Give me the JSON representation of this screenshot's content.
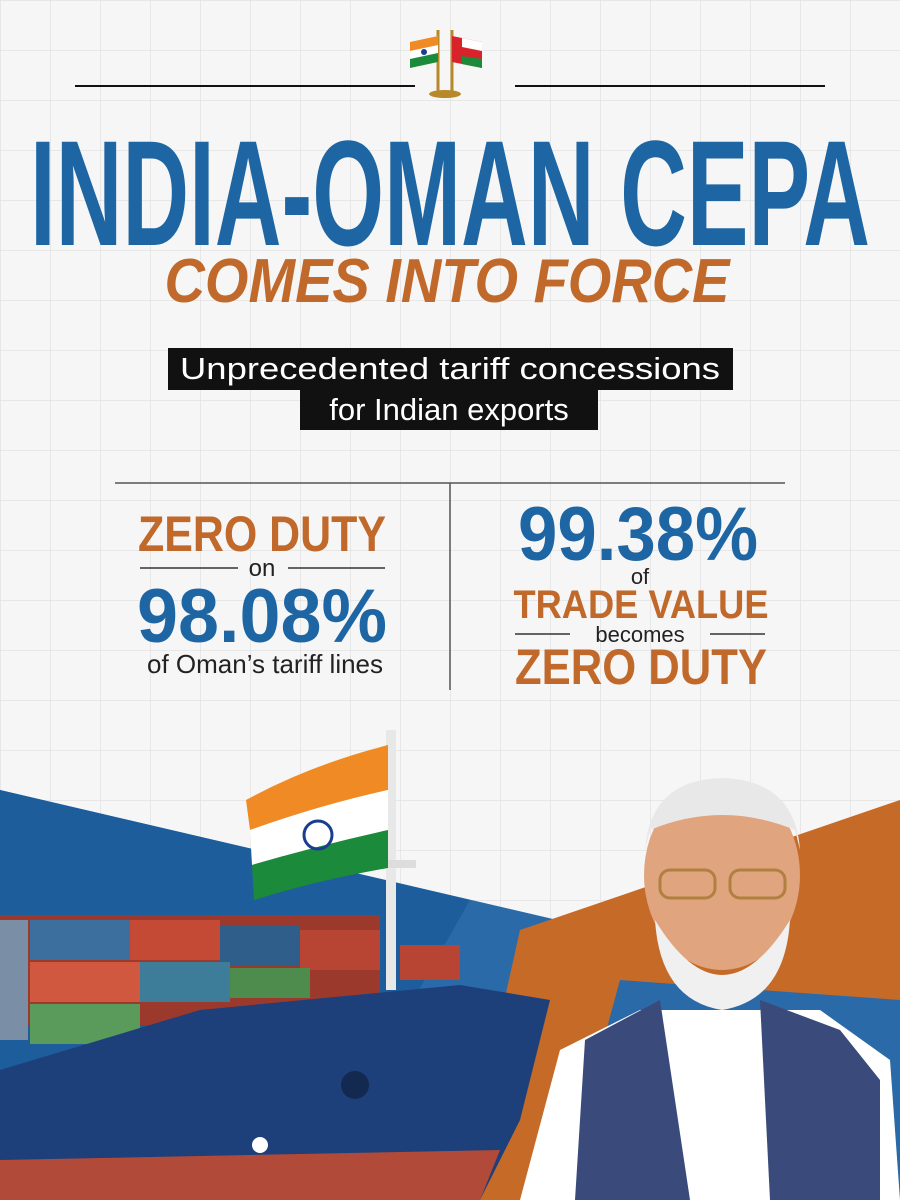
{
  "header": {
    "title": "INDIA-OMAN CEPA",
    "subtitle": "COMES INTO FORCE",
    "tagline": [
      "Unprecedented tariff concessions",
      "for Indian exports"
    ]
  },
  "stats": [
    {
      "headline": "ZERO DUTY",
      "connector": "on",
      "figure": "98.08%",
      "detail": "of Oman’s tariff lines"
    },
    {
      "figure": "99.38%",
      "connector": "of",
      "headline": "TRADE VALUE",
      "connector2": "becomes",
      "footer": "ZERO DUTY"
    }
  ]
}
